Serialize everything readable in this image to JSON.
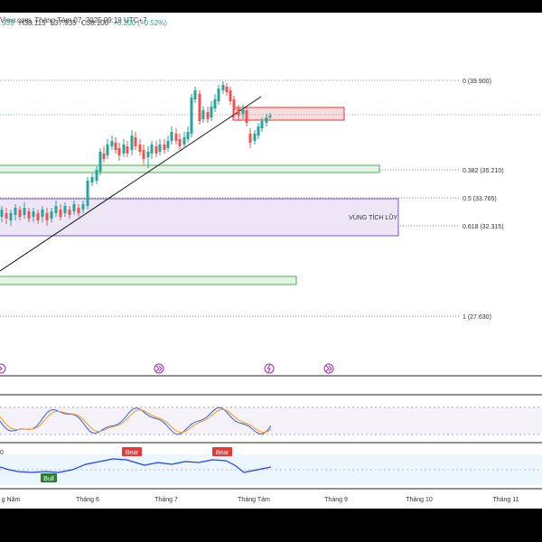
{
  "header": {
    "title": "View.com, Tháng Tám 07, 2025 09:19 UTC+7",
    "ohlc": {
      "open": ".935",
      "high": "H38.115",
      "low": "L37.935",
      "close": "C38.100",
      "change": "+0.200 (+0.52%)"
    }
  },
  "fib_levels": [
    {
      "label": "0 (39.900)"
    },
    {
      "label": "0.382 (35.210)"
    },
    {
      "label": "0.5 (33.765)"
    },
    {
      "label": "0.618 (32.315)"
    },
    {
      "label": "1 (27.630)"
    }
  ],
  "zone_label": "VÙNG TÍCH LŨY",
  "signals": [
    {
      "label": "Bull"
    },
    {
      "label": "Bear"
    },
    {
      "label": "Bear"
    }
  ],
  "macd_scale_label": "0",
  "time_axis": [
    "g Năm",
    "Tháng 6",
    "Tháng 7",
    "Tháng Tám",
    "Tháng 9",
    "Tháng 10",
    "Tháng 11"
  ],
  "colors": {
    "up": "#26a69a",
    "down": "#ef5350",
    "support_zone": "#4caf50",
    "resistance_zone": "#e57373",
    "accumulation_zone": "#7e57c2",
    "stoch_k": "#2962ff",
    "stoch_d": "#ff9800",
    "macd": "#1e40ff"
  },
  "event_icons": [
    "arrow-right-circle-icon",
    "arrow-right-circle-icon",
    "lightning-circle-icon",
    "arrow-right-circle-icon"
  ]
}
